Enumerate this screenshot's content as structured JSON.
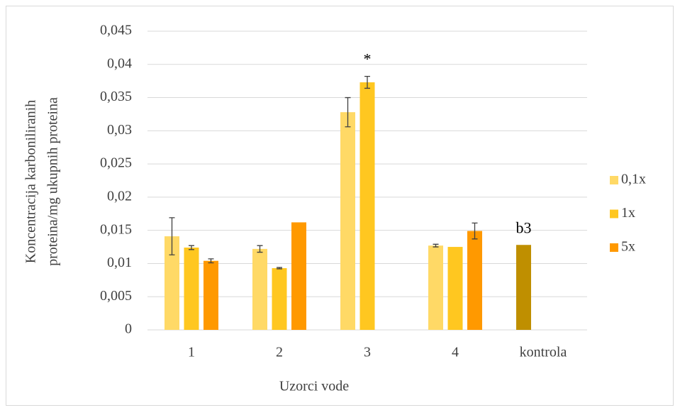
{
  "chart_data": {
    "type": "bar",
    "xlabel": "Uzorci vode",
    "ylabel": [
      "Koncentracija karboniliranih",
      "proteina/mg ukupnih proteina"
    ],
    "categories": [
      "1",
      "2",
      "3",
      "4",
      "kontrola"
    ],
    "series": [
      {
        "name": "0,1x",
        "color": "#ffd966",
        "colors": [
          "#ffd966",
          "#ffd966",
          "#ffd966",
          "#ffd966",
          "#bf8f00"
        ],
        "values": [
          0.0141,
          0.0122,
          0.0328,
          0.0127,
          0.0128
        ],
        "errors": [
          0.0028,
          0.0005,
          0.0022,
          0.0002,
          null
        ]
      },
      {
        "name": "1x",
        "color": "#ffc720",
        "values": [
          0.0124,
          0.0093,
          0.0373,
          0.0125,
          null
        ],
        "errors": [
          0.0003,
          0.0001,
          0.0009,
          null,
          null
        ]
      },
      {
        "name": "5x",
        "color": "#ff9900",
        "values": [
          0.0104,
          0.0162,
          null,
          0.0149,
          null
        ],
        "errors": [
          0.0003,
          null,
          null,
          0.0012,
          null
        ]
      }
    ],
    "annotations": [
      {
        "text": "*",
        "category": "3"
      },
      {
        "text": "b3",
        "category": "kontrola"
      }
    ],
    "ylim": [
      0,
      0.045
    ],
    "yticks": [
      0,
      {
        "value": 0.005,
        "label": "0,005"
      },
      {
        "value": 0.01,
        "label": "0,01"
      },
      {
        "value": 0.015,
        "label": "0,015"
      },
      {
        "value": 0.02,
        "label": "0,02"
      },
      {
        "value": 0.025,
        "label": "0,025"
      },
      {
        "value": 0.03,
        "label": "0,03"
      },
      {
        "value": 0.035,
        "label": "0,035"
      },
      {
        "value": 0.04,
        "label": "0,04"
      },
      {
        "value": 0.045,
        "label": "0,045"
      }
    ],
    "grid": true,
    "legend": "right"
  }
}
